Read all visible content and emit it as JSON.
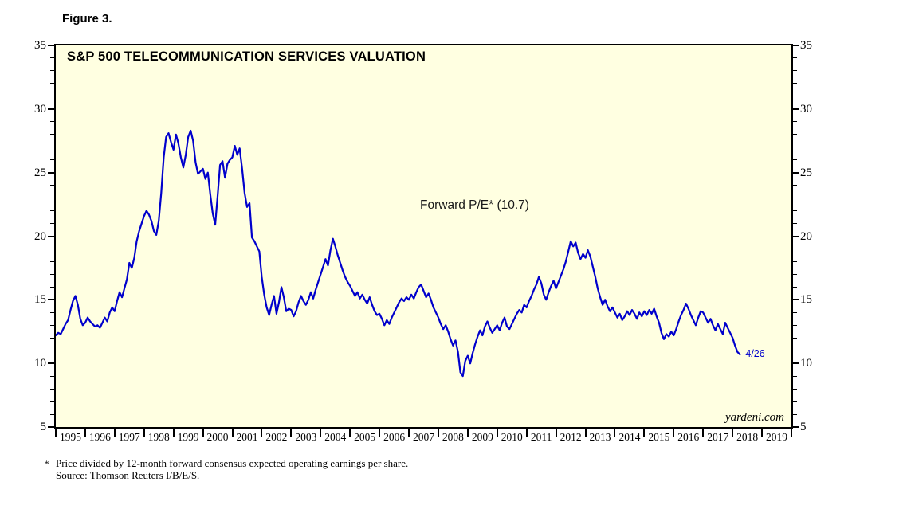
{
  "figure_label": "Figure 3.",
  "chart_data": {
    "type": "line",
    "title": "S&P 500 TELECOMMUNICATION SERVICES VALUATION",
    "annotation": "Forward P/E* (10.7)",
    "last_point_label": "4/26",
    "watermark": "yardeni.com",
    "latest_value": 10.7,
    "ylim": [
      5,
      35
    ],
    "xlim": [
      1995,
      2020
    ],
    "y_ticks": [
      35,
      30,
      25,
      20,
      15,
      10,
      5
    ],
    "y_minor_step": 1,
    "x_tick_labels": [
      "1995",
      "1996",
      "1997",
      "1998",
      "1999",
      "2000",
      "2001",
      "2002",
      "2003",
      "2004",
      "2005",
      "2006",
      "2007",
      "2008",
      "2009",
      "2010",
      "2011",
      "2012",
      "2013",
      "2014",
      "2015",
      "2016",
      "2017",
      "2018",
      "2019"
    ],
    "line_color": "#0000CC",
    "plot_bg": "#FFFFE1",
    "grid": "off",
    "series": [
      {
        "name": "Forward P/E",
        "x_start": 1995.0,
        "x_step": 0.0833333,
        "values": [
          12.2,
          12.4,
          12.3,
          12.7,
          13.1,
          13.4,
          14.2,
          14.9,
          15.3,
          14.6,
          13.5,
          13.0,
          13.2,
          13.6,
          13.3,
          13.1,
          12.9,
          13.0,
          12.8,
          13.2,
          13.6,
          13.3,
          14.0,
          14.4,
          14.1,
          14.9,
          15.6,
          15.2,
          15.9,
          16.6,
          17.9,
          17.5,
          18.3,
          19.6,
          20.4,
          21.0,
          21.6,
          22.0,
          21.7,
          21.2,
          20.4,
          20.1,
          21.2,
          23.4,
          26.2,
          27.8,
          28.1,
          27.4,
          26.8,
          28.0,
          27.3,
          26.2,
          25.4,
          26.4,
          27.8,
          28.3,
          27.5,
          25.8,
          24.9,
          25.1,
          25.3,
          24.5,
          25.0,
          23.3,
          21.8,
          20.9,
          23.2,
          25.6,
          25.9,
          24.6,
          25.7,
          26.0,
          26.2,
          27.1,
          26.4,
          26.9,
          25.3,
          23.4,
          22.3,
          22.6,
          19.9,
          19.6,
          19.2,
          18.8,
          16.8,
          15.4,
          14.4,
          13.8,
          14.6,
          15.3,
          13.9,
          14.8,
          16.0,
          15.2,
          14.1,
          14.3,
          14.2,
          13.7,
          14.1,
          14.8,
          15.3,
          14.9,
          14.6,
          15.0,
          15.6,
          15.1,
          15.8,
          16.4,
          17.0,
          17.6,
          18.2,
          17.7,
          18.9,
          19.8,
          19.2,
          18.5,
          17.9,
          17.3,
          16.8,
          16.4,
          16.1,
          15.7,
          15.3,
          15.6,
          15.1,
          15.4,
          15.0,
          14.7,
          15.2,
          14.6,
          14.1,
          13.8,
          13.9,
          13.5,
          13.0,
          13.4,
          13.1,
          13.6,
          14.0,
          14.4,
          14.8,
          15.1,
          14.9,
          15.2,
          15.0,
          15.4,
          15.1,
          15.6,
          16.0,
          16.2,
          15.7,
          15.2,
          15.5,
          15.0,
          14.4,
          14.0,
          13.6,
          13.1,
          12.7,
          13.0,
          12.5,
          11.9,
          11.4,
          11.8,
          10.9,
          9.3,
          9.0,
          10.2,
          10.6,
          10.0,
          10.8,
          11.5,
          12.1,
          12.6,
          12.2,
          12.9,
          13.3,
          12.8,
          12.4,
          12.7,
          13.0,
          12.6,
          13.2,
          13.6,
          12.9,
          12.7,
          13.1,
          13.5,
          13.9,
          14.2,
          14.0,
          14.6,
          14.4,
          14.9,
          15.3,
          15.8,
          16.2,
          16.8,
          16.3,
          15.4,
          15.0,
          15.6,
          16.1,
          16.5,
          15.9,
          16.4,
          16.9,
          17.4,
          18.0,
          18.8,
          19.6,
          19.2,
          19.5,
          18.7,
          18.2,
          18.6,
          18.3,
          18.9,
          18.4,
          17.6,
          16.8,
          15.9,
          15.2,
          14.6,
          15.0,
          14.5,
          14.1,
          14.4,
          14.0,
          13.6,
          13.9,
          13.4,
          13.7,
          14.1,
          13.8,
          14.2,
          13.9,
          13.5,
          14.0,
          13.7,
          14.1,
          13.8,
          14.2,
          13.9,
          14.3,
          13.7,
          13.2,
          12.4,
          11.9,
          12.3,
          12.1,
          12.5,
          12.2,
          12.7,
          13.3,
          13.8,
          14.2,
          14.7,
          14.3,
          13.8,
          13.4,
          13.0,
          13.6,
          14.1,
          14.0,
          13.6,
          13.2,
          13.5,
          13.0,
          12.6,
          13.1,
          12.7,
          12.3,
          13.2,
          12.8,
          12.4,
          12.0,
          11.4,
          10.9,
          10.7
        ]
      }
    ]
  },
  "footnote": {
    "marker": "*",
    "line1": "Price divided by 12-month forward consensus expected operating earnings per share.",
    "line2": "Source: Thomson Reuters I/B/E/S."
  }
}
